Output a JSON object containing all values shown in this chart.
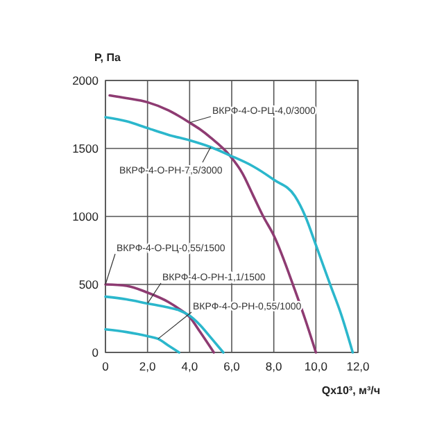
{
  "chart_data": {
    "type": "line",
    "xlabel": "Qx10³, м³/ч",
    "ylabel": "P, Па",
    "xlim": [
      0,
      12
    ],
    "ylim": [
      0,
      2000
    ],
    "xticks": [
      {
        "value": 0,
        "label": "0"
      },
      {
        "value": 2,
        "label": "2,0"
      },
      {
        "value": 4,
        "label": "4,0"
      },
      {
        "value": 6,
        "label": "6,0"
      },
      {
        "value": 8,
        "label": "8,0"
      },
      {
        "value": 10,
        "label": "10,0"
      },
      {
        "value": 12,
        "label": "12,0"
      }
    ],
    "yticks": [
      0,
      500,
      1000,
      1500,
      2000
    ],
    "grid": true,
    "line_style": "solid",
    "series": [
      {
        "name": "ВКРФ-4-О-РЦ-4,0/3000",
        "color": "#8e3b72",
        "x": [
          0.2,
          1,
          2,
          3,
          4,
          4.5,
          5,
          5.9,
          6.5,
          7,
          7.5,
          8,
          9,
          9.5,
          10
        ],
        "values": [
          1890,
          1870,
          1840,
          1780,
          1690,
          1640,
          1580,
          1450,
          1320,
          1160,
          1000,
          860,
          460,
          240,
          0
        ]
      },
      {
        "name": "ВКРФ-4-О-РН-7,5/3000",
        "color": "#2bb7cc",
        "x": [
          0,
          1,
          2,
          3,
          4,
          5,
          5.9,
          7,
          8,
          9,
          9.5,
          10,
          10.7,
          11.2,
          11.75
        ],
        "values": [
          1730,
          1700,
          1650,
          1600,
          1560,
          1510,
          1450,
          1370,
          1270,
          1150,
          1000,
          790,
          490,
          280,
          0
        ]
      },
      {
        "name": "ВКРФ-4-О-РЦ-0,55/1500",
        "color": "#8e3b72",
        "x": [
          0,
          1,
          2,
          3,
          3.5,
          4,
          4.5,
          5.15
        ],
        "values": [
          500,
          490,
          440,
          370,
          320,
          260,
          150,
          0
        ]
      },
      {
        "name": "ВКРФ-4-О-РН-1,1/1500",
        "color": "#2bb7cc",
        "x": [
          0,
          1,
          2,
          3,
          3.5,
          4,
          4.5,
          5,
          5.6
        ],
        "values": [
          410,
          390,
          360,
          330,
          310,
          270,
          200,
          110,
          0
        ]
      },
      {
        "name": "ВКРФ-4-О-РН-0,55/1000",
        "color": "#2bb7cc",
        "x": [
          0,
          1,
          2,
          2.5,
          3,
          3.5
        ],
        "values": [
          170,
          150,
          120,
          100,
          50,
          0
        ]
      }
    ]
  }
}
